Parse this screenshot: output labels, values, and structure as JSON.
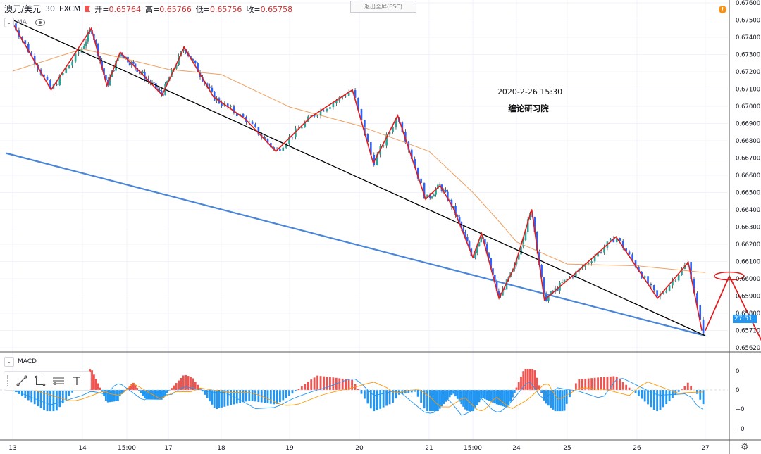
{
  "header": {
    "symbol": "澳元/美元",
    "interval": "30",
    "source": "FXCM",
    "open_label": "开=",
    "open": "0.65764",
    "high_label": "高=",
    "high": "0.65766",
    "low_label": "低=",
    "low": "0.65756",
    "close_label": "收=",
    "close": "0.65758"
  },
  "fullscreen_exit": "退出全屏(ESC)",
  "indicator_row": {
    "name": "MA"
  },
  "macd_label": "MACD",
  "annotation": {
    "datetime": "2020-2-26 15:30",
    "watermark": "缠论研习院"
  },
  "countdown": "27:51",
  "alert_badge": "!",
  "price_axis_labels": [
    "0.67600",
    "0.67500",
    "0.67400",
    "0.67300",
    "0.67200",
    "0.67100",
    "0.67000",
    "0.66900",
    "0.66800",
    "0.66700",
    "0.66600",
    "0.66500",
    "0.66400",
    "0.66300",
    "0.66200",
    "0.66100",
    "0.66000",
    "0.65900",
    "0.65800",
    "0.65710",
    "0.65620"
  ],
  "macd_axis_labels": [
    "0",
    "0",
    "−0",
    "−0"
  ],
  "time_axis_labels": [
    "13",
    "14",
    "15:00",
    "17",
    "18",
    "19",
    "20",
    "21",
    "15:00",
    "24",
    "25",
    "26",
    "27"
  ],
  "colors": {
    "up": "#26a69a",
    "down": "#2962ff",
    "zigzag": "#e31b1b",
    "trend_black": "#000000",
    "trend_blue": "#4a86d8",
    "ma": "#f0a060",
    "macd_pos": "#ef5350",
    "macd_neg": "#2196f3",
    "macd_line": "#2196f3",
    "signal_line": "#ff9800"
  },
  "chart_data": {
    "type": "line",
    "title": "澳元/美元 30 FXCM",
    "y_axis": {
      "min": 0.6558,
      "max": 0.676
    },
    "x_categories": [
      "13",
      "14",
      "15:00",
      "17",
      "18",
      "19",
      "20",
      "21",
      "15:00",
      "24",
      "25",
      "26",
      "27"
    ],
    "zigzag_pivots": [
      {
        "t": 0.0,
        "p": 0.6748
      },
      {
        "t": 0.55,
        "p": 0.6709
      },
      {
        "t": 1.2,
        "p": 0.6745
      },
      {
        "t": 1.55,
        "p": 0.67115
      },
      {
        "t": 1.85,
        "p": 0.6731
      },
      {
        "t": 2.3,
        "p": 0.672
      },
      {
        "t": 2.85,
        "p": 0.6706
      },
      {
        "t": 3.3,
        "p": 0.6734
      },
      {
        "t": 3.85,
        "p": 0.6705
      },
      {
        "t": 4.35,
        "p": 0.6692
      },
      {
        "t": 4.8,
        "p": 0.6673
      },
      {
        "t": 5.3,
        "p": 0.6693
      },
      {
        "t": 5.9,
        "p": 0.6709
      },
      {
        "t": 6.2,
        "p": 0.6666
      },
      {
        "t": 6.55,
        "p": 0.6694
      },
      {
        "t": 6.95,
        "p": 0.6645
      },
      {
        "t": 7.25,
        "p": 0.6653
      },
      {
        "t": 7.55,
        "p": 0.664
      },
      {
        "t": 8.0,
        "p": 0.6611
      },
      {
        "t": 8.2,
        "p": 0.6625
      },
      {
        "t": 8.6,
        "p": 0.6587
      },
      {
        "t": 8.95,
        "p": 0.6605
      },
      {
        "t": 9.3,
        "p": 0.6639
      },
      {
        "t": 9.55,
        "p": 0.6586
      },
      {
        "t": 10.1,
        "p": 0.6601
      },
      {
        "t": 10.7,
        "p": 0.6623
      },
      {
        "t": 11.3,
        "p": 0.6587
      },
      {
        "t": 11.75,
        "p": 0.6608
      },
      {
        "t": 11.95,
        "p": 0.6568
      }
    ],
    "trendline_upper": [
      {
        "t": 0.0,
        "p": 0.675
      },
      {
        "t": 12.0,
        "p": 0.6565
      }
    ],
    "trendline_lower": [
      {
        "t": -0.1,
        "p": 0.6672
      },
      {
        "t": 12.0,
        "p": 0.6565
      }
    ],
    "projection": [
      {
        "t": 12.0,
        "p": 0.6568
      },
      {
        "t": 12.35,
        "p": 0.66
      },
      {
        "t": 12.9,
        "p": 0.6556
      }
    ],
    "projection_target_circle": {
      "t": 12.35,
      "p": 0.66
    },
    "ma_line": [
      {
        "t": 0.0,
        "p": 0.672
      },
      {
        "t": 1.0,
        "p": 0.6733
      },
      {
        "t": 2.0,
        "p": 0.6727
      },
      {
        "t": 3.0,
        "p": 0.6721
      },
      {
        "t": 4.0,
        "p": 0.6718
      },
      {
        "t": 5.0,
        "p": 0.6699
      },
      {
        "t": 6.0,
        "p": 0.6688
      },
      {
        "t": 7.0,
        "p": 0.6673
      },
      {
        "t": 8.0,
        "p": 0.6649
      },
      {
        "t": 8.6,
        "p": 0.6632
      },
      {
        "t": 9.0,
        "p": 0.662
      },
      {
        "t": 10.0,
        "p": 0.6607
      },
      {
        "t": 11.0,
        "p": 0.6606
      },
      {
        "t": 12.0,
        "p": 0.6602
      }
    ],
    "macd_histogram_note": "MACD histogram values oscillate around 0 (axis labels 0, 0, −0, −0)",
    "grid": true,
    "legend": "none"
  }
}
